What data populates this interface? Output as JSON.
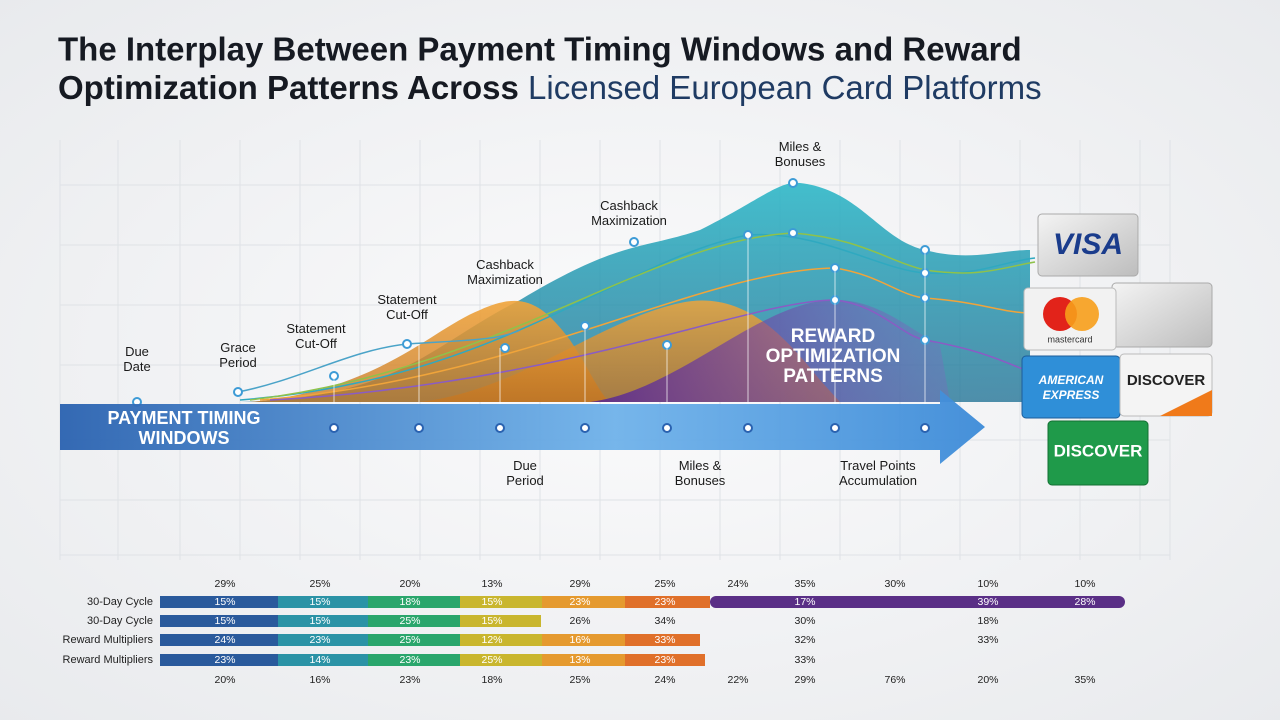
{
  "title": {
    "line1": "The Interplay Between Payment Timing Windows and Reward",
    "line2a": "Optimization Patterns Across",
    "line2b": "Licensed European Card Platforms"
  },
  "arrow_label": [
    "PAYMENT TIMING",
    "WINDOWS"
  ],
  "overlay_label": [
    "REWARD",
    "OPTIMIZATION",
    "PATTERNS"
  ],
  "callouts_above": [
    [
      "Due",
      "Date"
    ],
    [
      "Grace",
      "Period"
    ],
    [
      "Statement",
      "Cut-Off"
    ],
    [
      "Statement",
      "Cut-Off"
    ],
    [
      "Cashback",
      "Maximization"
    ],
    [
      "Cashback",
      "Maximization"
    ],
    [
      "Miles &",
      "Bonuses"
    ]
  ],
  "callouts_below": [
    [
      "Due",
      "Period"
    ],
    [
      "Miles &",
      "Bonuses"
    ],
    [
      "Travel Points",
      "Accumulation"
    ]
  ],
  "brands": {
    "visa": "VISA",
    "mastercard": "mastercard",
    "amex": [
      "AMERICAN",
      "EXPRESS"
    ],
    "discover1": "DISCOVER",
    "discover2": "DISCOVER"
  },
  "table": {
    "top_labels": [
      "29%",
      "25%",
      "20%",
      "13%",
      "29%",
      "25%",
      "24%",
      "35%",
      "30%",
      "10%",
      "10%"
    ],
    "rows": [
      {
        "label": "30-Day Cycle",
        "cells": [
          "15%",
          "15%",
          "18%",
          "15%",
          "23%",
          "23%",
          null,
          "17%",
          null,
          "39%",
          "28%"
        ]
      },
      {
        "label": "30-Day Cycle",
        "cells": [
          "15%",
          "15%",
          "25%",
          "15%",
          "26%",
          "34%",
          null,
          "30%",
          null,
          "18%",
          null
        ]
      },
      {
        "label": "Reward Multipliers",
        "cells": [
          "24%",
          "23%",
          "25%",
          "12%",
          "16%",
          "33%",
          null,
          "32%",
          null,
          "33%",
          null
        ]
      },
      {
        "label": "Reward Multipliers",
        "cells": [
          "23%",
          "14%",
          "23%",
          "25%",
          "13%",
          "23%",
          null,
          "33%",
          null,
          null,
          null
        ]
      }
    ],
    "bottom_labels": [
      "20%",
      "16%",
      "23%",
      "18%",
      "25%",
      "24%",
      "22%",
      "29%",
      "76%",
      "20%",
      "35%"
    ]
  }
}
